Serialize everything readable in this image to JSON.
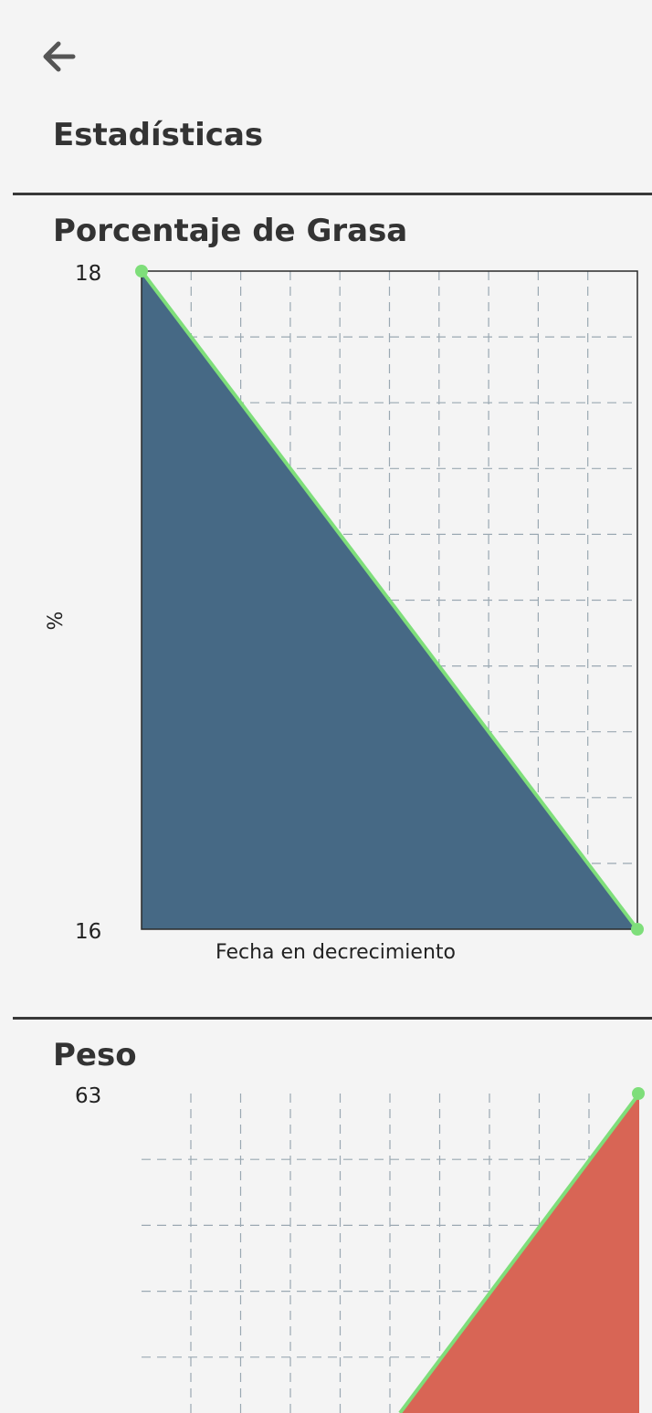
{
  "header": {
    "title": "Estadísticas",
    "back_icon": "arrow-left-icon"
  },
  "colors": {
    "background": "#f4f4f4",
    "line": "#7ede7a",
    "fat_area": "#466985",
    "weight_area": "#d86555",
    "grid": "#9aa8b2",
    "divider": "#383838"
  },
  "sections": [
    {
      "title": "Porcentaje de Grasa",
      "chart_data": {
        "type": "area",
        "title": "Porcentaje de Grasa",
        "xlabel": "Fecha en decrecimiento",
        "ylabel": "%",
        "x": [
          0,
          1
        ],
        "series": [
          {
            "values": [
              18,
              16
            ]
          }
        ],
        "ylim": [
          16,
          18
        ],
        "ytick_labels": [
          "18",
          "16"
        ],
        "grid": true,
        "axes_frame": true
      }
    },
    {
      "title": "Peso",
      "chart_data": {
        "type": "area",
        "title": "Peso",
        "xlabel": "",
        "ylabel": "",
        "x": [
          0,
          1
        ],
        "series": [
          {
            "values": [
              null,
              63
            ]
          }
        ],
        "ylim": [
          null,
          63
        ],
        "ytick_labels": [
          "63"
        ],
        "grid": true,
        "axes_frame": false
      }
    }
  ]
}
